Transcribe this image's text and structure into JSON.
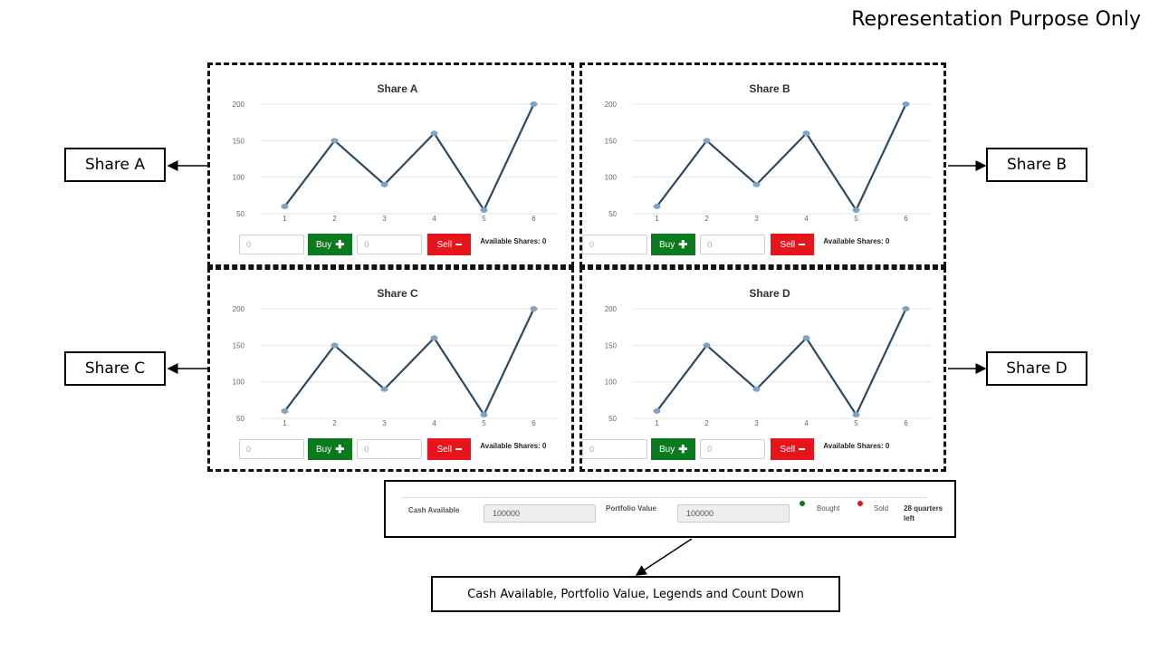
{
  "top_note": "Representation Purpose Only",
  "panels": [
    {
      "title": "Share A",
      "callout": "Share A",
      "buy_qty_placeholder": "0",
      "sell_qty_placeholder": "0",
      "buy_label": "Buy",
      "sell_label": "Sell",
      "available_label": "Available Shares: 0"
    },
    {
      "title": "Share B",
      "callout": "Share B",
      "buy_qty_placeholder": "0",
      "sell_qty_placeholder": "0",
      "buy_label": "Buy",
      "sell_label": "Sell",
      "available_label": "Available Shares: 0"
    },
    {
      "title": "Share C",
      "callout": "Share C",
      "buy_qty_placeholder": "0",
      "sell_qty_placeholder": "0",
      "buy_label": "Buy",
      "sell_label": "Sell",
      "available_label": "Available Shares: 0"
    },
    {
      "title": "Share D",
      "callout": "Share D",
      "buy_qty_placeholder": "0",
      "sell_qty_placeholder": "0",
      "buy_label": "Buy",
      "sell_label": "Sell",
      "available_label": "Available Shares: 0"
    }
  ],
  "status": {
    "cash_label": "Cash Available",
    "cash_value": "100000",
    "portfolio_label": "Portfolio Value",
    "portfolio_value": "100000",
    "legend_bought": "Bought",
    "legend_sold": "Sold",
    "countdown": "28 quarters left",
    "bought_color": "#0a7a1e",
    "sold_color": "#e8141b"
  },
  "bottom_callout": "Cash Available, Portfolio Value, Legends and Count Down",
  "chart_data": [
    {
      "type": "line",
      "title": "Share A",
      "x": [
        1,
        2,
        3,
        4,
        5,
        6
      ],
      "y": [
        60,
        150,
        90,
        160,
        55,
        200
      ],
      "yticks": [
        50,
        100,
        150,
        200
      ],
      "ylim": [
        50,
        200
      ],
      "line_color": "#2c4a63",
      "marker_color": "#7ea3c4"
    },
    {
      "type": "line",
      "title": "Share B",
      "x": [
        1,
        2,
        3,
        4,
        5,
        6
      ],
      "y": [
        60,
        150,
        90,
        160,
        55,
        200
      ],
      "yticks": [
        50,
        100,
        150,
        200
      ],
      "ylim": [
        50,
        200
      ],
      "line_color": "#2c4a63",
      "marker_color": "#7ea3c4"
    },
    {
      "type": "line",
      "title": "Share C",
      "x": [
        1,
        2,
        3,
        4,
        5,
        6
      ],
      "y": [
        60,
        150,
        90,
        160,
        55,
        200
      ],
      "yticks": [
        50,
        100,
        150,
        200
      ],
      "ylim": [
        50,
        200
      ],
      "line_color": "#2c4a63",
      "marker_color": "#7ea3c4"
    },
    {
      "type": "line",
      "title": "Share D",
      "x": [
        1,
        2,
        3,
        4,
        5,
        6
      ],
      "y": [
        60,
        150,
        90,
        160,
        55,
        200
      ],
      "yticks": [
        50,
        100,
        150,
        200
      ],
      "ylim": [
        50,
        200
      ],
      "line_color": "#2c4a63",
      "marker_color": "#7ea3c4"
    }
  ]
}
